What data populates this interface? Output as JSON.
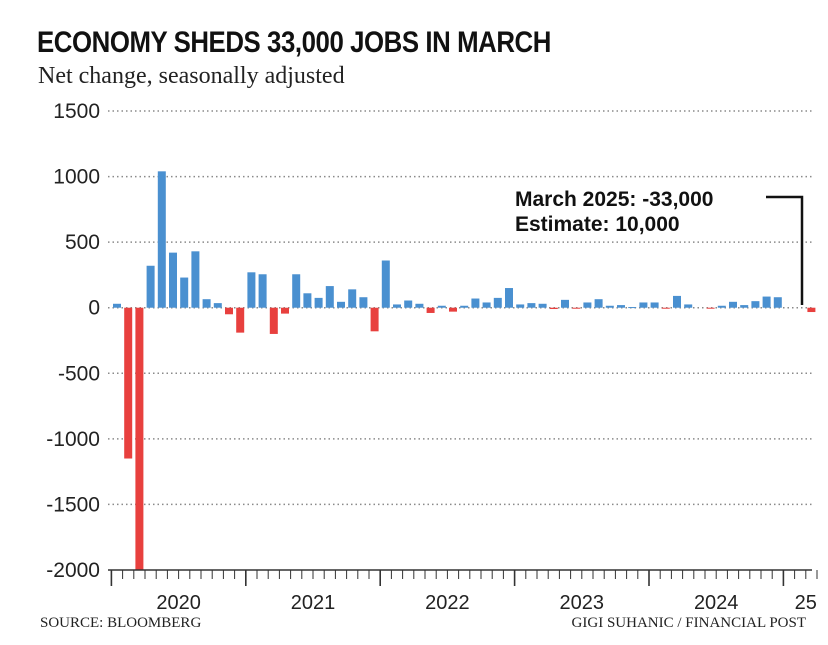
{
  "title": "ECONOMY SHEDS 33,000 JOBS IN MARCH",
  "subtitle": "Net change, seasonally adjusted",
  "source": "SOURCE: BLOOMBERG",
  "credit": "GIGI SUHANIC / FINANCIAL POST",
  "colors": {
    "positive": "#4a90d0",
    "negative": "#e8403e",
    "grid": "#8a8a8a",
    "text": "#222222"
  },
  "chart_data": {
    "type": "bar",
    "title": "ECONOMY SHEDS 33,000 JOBS IN MARCH",
    "subtitle": "Net change, seasonally adjusted",
    "xlabel": "",
    "ylabel": "",
    "ylim": [
      -2000,
      1500
    ],
    "yticks": [
      1500,
      1000,
      500,
      0,
      -500,
      -1000,
      -1500,
      -2000
    ],
    "grid": "horizontal dotted",
    "year_labels": [
      {
        "label": "2020",
        "month_index": 6
      },
      {
        "label": "2021",
        "month_index": 18
      },
      {
        "label": "2022",
        "month_index": 30
      },
      {
        "label": "2023",
        "month_index": 42
      },
      {
        "label": "2024",
        "month_index": 54
      },
      {
        "label": "25",
        "month_index": 62
      }
    ],
    "x": [
      "2020-01",
      "2020-02",
      "2020-03",
      "2020-04",
      "2020-05",
      "2020-06",
      "2020-07",
      "2020-08",
      "2020-09",
      "2020-10",
      "2020-11",
      "2020-12",
      "2021-01",
      "2021-02",
      "2021-03",
      "2021-04",
      "2021-05",
      "2021-06",
      "2021-07",
      "2021-08",
      "2021-09",
      "2021-10",
      "2021-11",
      "2021-12",
      "2022-01",
      "2022-02",
      "2022-03",
      "2022-04",
      "2022-05",
      "2022-06",
      "2022-07",
      "2022-08",
      "2022-09",
      "2022-10",
      "2022-11",
      "2022-12",
      "2023-01",
      "2023-02",
      "2023-03",
      "2023-04",
      "2023-05",
      "2023-06",
      "2023-07",
      "2023-08",
      "2023-09",
      "2023-10",
      "2023-11",
      "2023-12",
      "2024-01",
      "2024-02",
      "2024-03",
      "2024-04",
      "2024-05",
      "2024-06",
      "2024-07",
      "2024-08",
      "2024-09",
      "2024-10",
      "2024-11",
      "2024-12",
      "2025-01",
      "2025-02",
      "2025-03"
    ],
    "values": [
      30,
      -1150,
      -2000,
      320,
      1040,
      420,
      230,
      430,
      65,
      35,
      -50,
      -190,
      270,
      255,
      -200,
      -45,
      255,
      110,
      75,
      165,
      45,
      140,
      80,
      -180,
      360,
      25,
      55,
      30,
      -40,
      15,
      -30,
      15,
      70,
      40,
      75,
      150,
      25,
      35,
      30,
      -10,
      60,
      -5,
      40,
      65,
      15,
      20,
      5,
      40,
      40,
      -5,
      90,
      25,
      0,
      -5,
      15,
      45,
      20,
      50,
      85,
      80,
      0,
      0,
      -33
    ],
    "annotation": {
      "line1": "March 2025: -33,000",
      "line2": "Estimate: 10,000"
    }
  }
}
